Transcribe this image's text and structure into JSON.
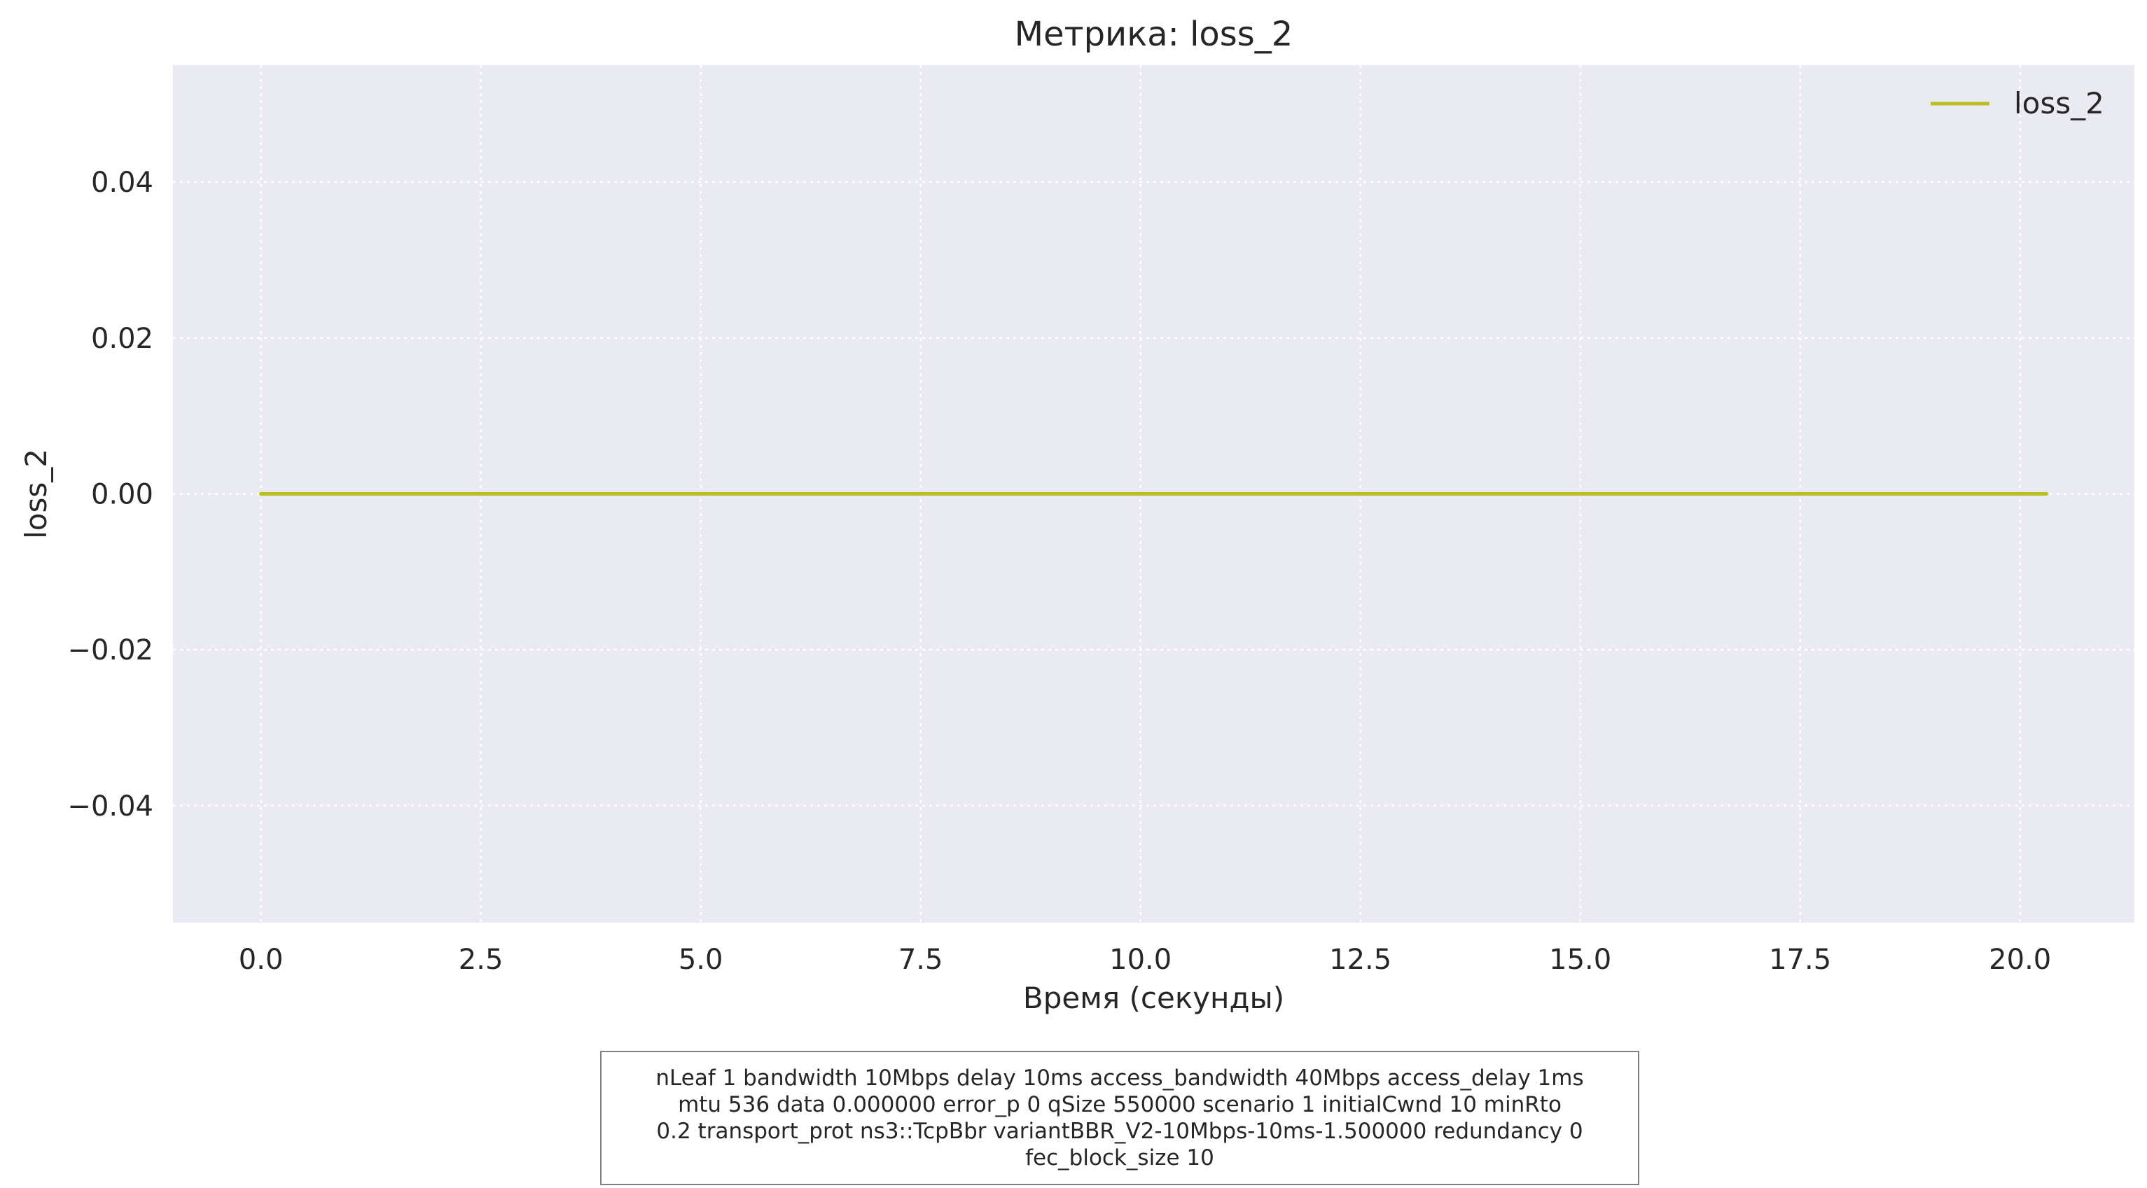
{
  "chart_data": {
    "type": "line",
    "title": "Метрика: loss_2",
    "xlabel": "Время (секунды)",
    "ylabel": "loss_2",
    "xlim": [
      -1.0,
      21.3
    ],
    "ylim": [
      -0.055,
      0.055
    ],
    "x_ticks": [
      0.0,
      2.5,
      5.0,
      7.5,
      10.0,
      12.5,
      15.0,
      17.5,
      20.0
    ],
    "x_tick_labels": [
      "0.0",
      "2.5",
      "5.0",
      "7.5",
      "10.0",
      "12.5",
      "15.0",
      "17.5",
      "20.0"
    ],
    "y_ticks": [
      0.04,
      0.02,
      0.0,
      -0.02,
      -0.04
    ],
    "y_tick_labels": [
      "0.04",
      "0.02",
      "0.00",
      "−0.02",
      "−0.04"
    ],
    "grid": true,
    "legend_position": "top-right",
    "background_color": "#eaeaf2",
    "grid_color": "#ffffff",
    "series": [
      {
        "name": "loss_2",
        "color": "#bcbd22",
        "x": [
          0.0,
          20.3
        ],
        "y": [
          0.0,
          0.0
        ]
      }
    ]
  },
  "parameters_text": "nLeaf 1 bandwidth 10Mbps delay  10ms access_bandwidth 40Mbps access_delay 1ms\nmtu 536 data  0.000000 error_p 0 qSize 550000 scenario 1 initialCwnd  10 minRto\n0.2 transport_prot ns3::TcpBbr variantBBR_V2-10Mbps-10ms-1.500000 redundancy 0\nfec_block_size 10"
}
